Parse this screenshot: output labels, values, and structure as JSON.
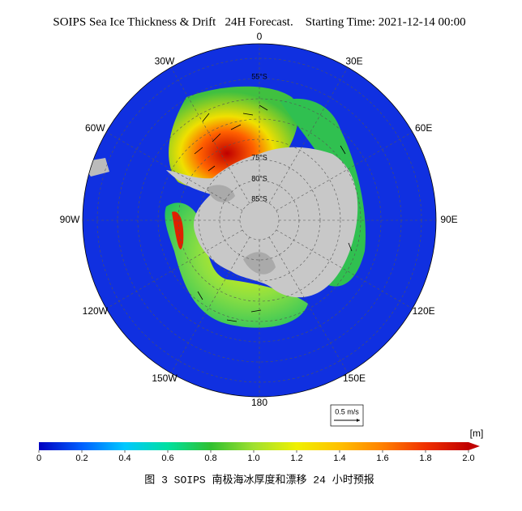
{
  "header": {
    "title": "SOIPS Sea Ice Thickness & Drift   24H Forecast.    Starting Time: 2021-12-14 00:00"
  },
  "map": {
    "longitude_labels": [
      "0",
      "30E",
      "60E",
      "90E",
      "120E",
      "150E",
      "180",
      "150W",
      "120W",
      "90W",
      "60W",
      "30W"
    ],
    "latitude_labels": [
      "55°S",
      "75°S",
      "80°S",
      "85°S"
    ],
    "reference_vector": "0.5 m/s"
  },
  "colorbar": {
    "unit": "[m]",
    "range": [
      0,
      2
    ],
    "ticks": [
      0,
      0.2,
      0.4,
      0.6,
      0.8,
      {
        "value": 1,
        "label": "1.0"
      },
      1.2,
      1.4,
      1.6,
      1.8,
      {
        "value": 2,
        "label": "2.0"
      }
    ]
  },
  "caption": "图 3 SOIPS 南极海冰厚度和漂移 24 小时预报"
}
